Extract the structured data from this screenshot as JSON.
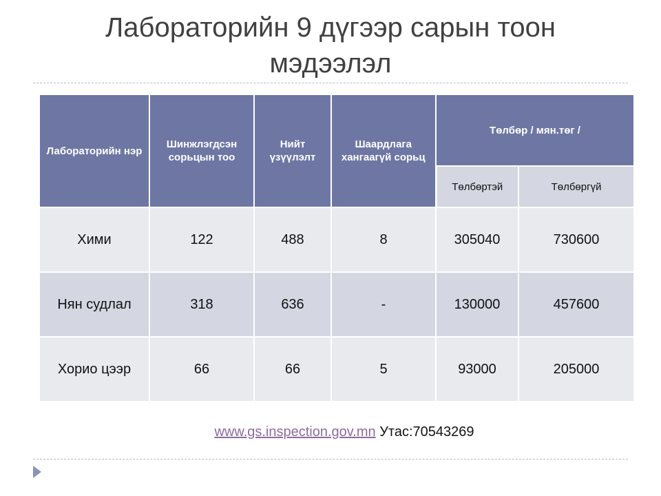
{
  "title": {
    "line1": "Лабораторийн 9 дүгээр сарын тоон",
    "line2": "мэдээлэл"
  },
  "table": {
    "headers": {
      "lab_name": "Лабораторийн нэр",
      "samples": "Шинжлэгдсэн сорьцын тоо",
      "indicators": "Нийт үзүүлэлт",
      "nonconforming": "Шаардлага хангаагүй сорьц",
      "fee": "Төлбөр / мян.төг /",
      "fee_paid": "Төлбөртэй",
      "fee_free": "Төлбөргүй"
    },
    "rows": [
      [
        "Хими",
        "122",
        "488",
        "8",
        "305040",
        "730600"
      ],
      [
        "Нян судлал",
        "318",
        "636",
        "-",
        "130000",
        "457600"
      ],
      [
        "Хорио цээр",
        "66",
        "66",
        "5",
        "93000",
        "205000"
      ]
    ]
  },
  "footer": {
    "link": "www.gs.inspection.gov.mn",
    "phone": "Утас:70543269"
  },
  "colors": {
    "header": "#6e77a3",
    "subheader": "#d4d6e1",
    "row_light": "#e9eaee",
    "row_dark": "#d4d6e1",
    "link": "#8c6b9e"
  },
  "icons": [
    "play-arrow-icon"
  ]
}
